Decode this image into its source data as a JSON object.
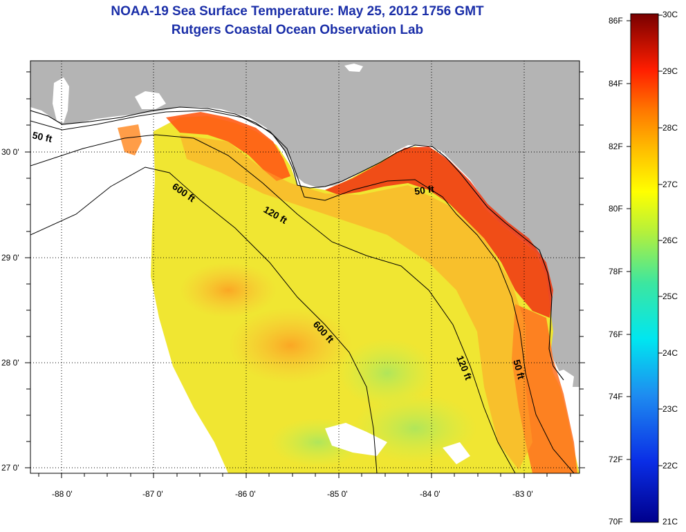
{
  "header": {
    "title": "NOAA-19 Sea Surface Temperature:  May 25, 2012 1756 GMT",
    "subtitle": "Rutgers Coastal Ocean Observation Lab"
  },
  "axes": {
    "x_ticks": [
      "-88 0'",
      "-87 0'",
      "-86 0'",
      "-85 0'",
      "-84 0'",
      "-83 0'"
    ],
    "y_ticks": [
      "30 0'",
      "29 0'",
      "28 0'",
      "27 0'"
    ]
  },
  "contours": {
    "c50_west": "50 ft",
    "c600_north": "600 ft",
    "c120_north": "120 ft",
    "c50_east": "50 ft",
    "c600_south": "600 ft",
    "c120_south": "120 ft",
    "c50_south": "50 ft"
  },
  "colorbar": {
    "fahrenheit": [
      "86F",
      "84F",
      "82F",
      "80F",
      "78F",
      "76F",
      "74F",
      "72F",
      "70F"
    ],
    "celsius": [
      "30C",
      "29C",
      "28C",
      "27C",
      "26C",
      "25C",
      "24C",
      "23C",
      "22C",
      "21C"
    ]
  },
  "colors": {
    "land": "#b4b4b4",
    "title": "#1a2ea8"
  }
}
